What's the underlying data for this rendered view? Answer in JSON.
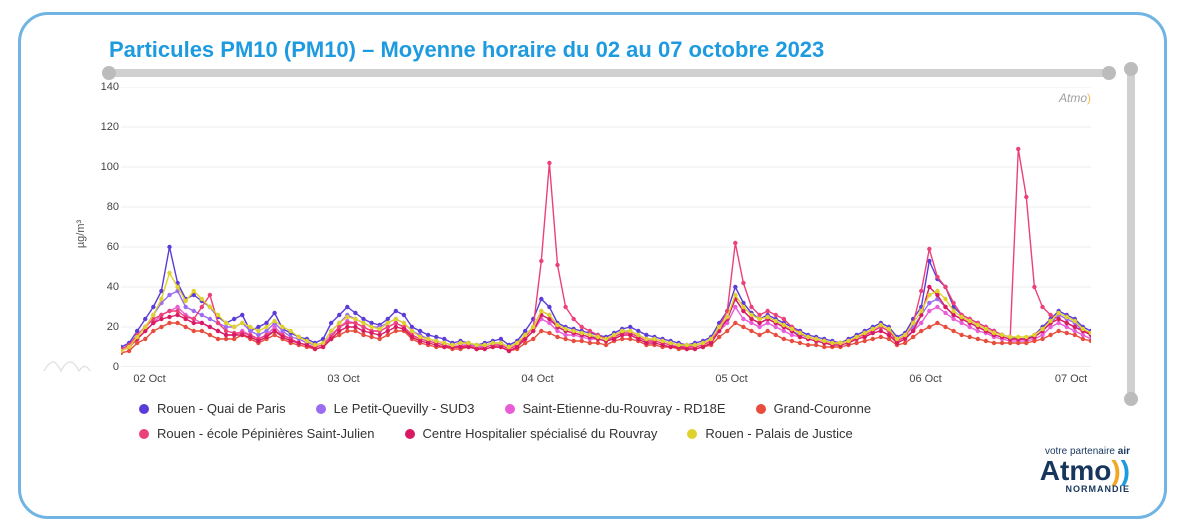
{
  "title": "Particules PM10 (PM10) – Moyenne horaire du 02 au 07 octobre 2023",
  "yaxis_label": "µg/m³",
  "chart": {
    "type": "line",
    "background_color": "#ffffff",
    "grid_color": "#e6e6e6",
    "ylim": [
      0,
      140
    ],
    "ytick_step": 20,
    "yticks": [
      0,
      20,
      40,
      60,
      80,
      100,
      120,
      140
    ],
    "xlim_hours": [
      0,
      120
    ],
    "xtick_hours": [
      4,
      28,
      52,
      76,
      100,
      118
    ],
    "xtick_labels": [
      "02 Oct",
      "03 Oct",
      "04 Oct",
      "05 Oct",
      "06 Oct",
      "07 Oct"
    ],
    "marker_radius": 2.2,
    "line_width": 1.4,
    "series": [
      {
        "name": "Rouen - Quai de Paris",
        "color": "#5b3bd9",
        "values": [
          10,
          12,
          18,
          24,
          30,
          38,
          60,
          42,
          34,
          36,
          33,
          30,
          25,
          22,
          24,
          26,
          18,
          20,
          22,
          27,
          19,
          17,
          15,
          14,
          12,
          14,
          22,
          26,
          30,
          27,
          24,
          22,
          21,
          24,
          28,
          26,
          20,
          18,
          16,
          15,
          14,
          12,
          13,
          12,
          11,
          12,
          13,
          14,
          11,
          13,
          18,
          24,
          34,
          30,
          22,
          20,
          19,
          18,
          17,
          16,
          15,
          17,
          19,
          20,
          18,
          16,
          15,
          14,
          13,
          12,
          11,
          12,
          13,
          15,
          22,
          28,
          40,
          32,
          27,
          24,
          26,
          24,
          22,
          20,
          18,
          16,
          15,
          14,
          13,
          12,
          14,
          16,
          18,
          20,
          22,
          20,
          15,
          17,
          24,
          30,
          53,
          44,
          40,
          30,
          26,
          24,
          22,
          20,
          18,
          16,
          15,
          14,
          14,
          16,
          20,
          24,
          28,
          26,
          24,
          20,
          18
        ]
      },
      {
        "name": "Le Petit-Quevilly - SUD3",
        "color": "#9b6bf0",
        "values": [
          9,
          11,
          16,
          20,
          26,
          32,
          36,
          38,
          30,
          28,
          26,
          24,
          22,
          20,
          20,
          22,
          18,
          16,
          18,
          22,
          18,
          15,
          14,
          12,
          11,
          12,
          18,
          22,
          26,
          24,
          22,
          20,
          20,
          22,
          24,
          22,
          18,
          16,
          14,
          13,
          12,
          11,
          12,
          12,
          10,
          11,
          12,
          12,
          10,
          12,
          16,
          20,
          28,
          26,
          20,
          18,
          17,
          16,
          15,
          15,
          14,
          16,
          18,
          18,
          16,
          14,
          14,
          13,
          12,
          11,
          10,
          11,
          12,
          14,
          20,
          24,
          34,
          28,
          24,
          22,
          24,
          22,
          20,
          18,
          16,
          15,
          14,
          13,
          12,
          12,
          13,
          15,
          16,
          18,
          20,
          18,
          14,
          16,
          20,
          26,
          32,
          34,
          30,
          26,
          24,
          22,
          20,
          18,
          16,
          15,
          14,
          14,
          14,
          15,
          18,
          22,
          26,
          24,
          22,
          18,
          16
        ]
      },
      {
        "name": "Saint-Etienne-du-Rouvray - RD18E",
        "color": "#e85dd6",
        "values": [
          8,
          10,
          14,
          18,
          22,
          26,
          28,
          30,
          26,
          24,
          22,
          20,
          18,
          16,
          16,
          18,
          16,
          14,
          16,
          20,
          16,
          14,
          12,
          11,
          10,
          11,
          16,
          20,
          23,
          22,
          20,
          18,
          18,
          20,
          22,
          20,
          16,
          14,
          13,
          12,
          11,
          10,
          11,
          11,
          10,
          10,
          11,
          11,
          9,
          11,
          14,
          18,
          24,
          22,
          18,
          16,
          16,
          15,
          14,
          14,
          13,
          15,
          17,
          17,
          15,
          13,
          13,
          12,
          11,
          10,
          10,
          10,
          11,
          13,
          18,
          22,
          30,
          24,
          22,
          20,
          22,
          20,
          18,
          16,
          15,
          14,
          13,
          12,
          12,
          12,
          13,
          14,
          15,
          17,
          18,
          16,
          13,
          15,
          18,
          22,
          28,
          30,
          27,
          24,
          22,
          20,
          18,
          17,
          15,
          14,
          13,
          13,
          13,
          14,
          16,
          20,
          22,
          20,
          18,
          16,
          14
        ]
      },
      {
        "name": "Grand-Couronne",
        "color": "#e74c3c",
        "values": [
          7,
          8,
          12,
          14,
          18,
          20,
          22,
          22,
          20,
          18,
          18,
          16,
          14,
          14,
          14,
          16,
          14,
          12,
          14,
          16,
          14,
          12,
          11,
          10,
          9,
          10,
          14,
          16,
          18,
          18,
          16,
          15,
          14,
          16,
          18,
          18,
          14,
          12,
          11,
          10,
          10,
          9,
          9,
          10,
          9,
          9,
          10,
          10,
          8,
          9,
          12,
          14,
          18,
          17,
          15,
          14,
          13,
          13,
          12,
          12,
          11,
          13,
          14,
          14,
          13,
          11,
          11,
          10,
          10,
          9,
          9,
          9,
          10,
          11,
          15,
          18,
          22,
          20,
          18,
          16,
          18,
          16,
          14,
          13,
          12,
          11,
          11,
          10,
          10,
          10,
          11,
          12,
          13,
          14,
          15,
          14,
          11,
          12,
          15,
          18,
          20,
          22,
          20,
          18,
          16,
          15,
          14,
          13,
          12,
          12,
          12,
          12,
          12,
          13,
          14,
          16,
          18,
          17,
          16,
          14,
          13
        ]
      },
      {
        "name": "Rouen - école Pépinières Saint-Julien",
        "color": "#ec407a",
        "values": [
          9,
          11,
          16,
          20,
          24,
          26,
          28,
          28,
          25,
          24,
          30,
          36,
          22,
          18,
          17,
          17,
          16,
          14,
          16,
          18,
          16,
          14,
          12,
          11,
          10,
          11,
          15,
          20,
          22,
          22,
          20,
          18,
          18,
          20,
          22,
          20,
          16,
          14,
          13,
          12,
          11,
          10,
          10,
          11,
          9,
          10,
          11,
          11,
          9,
          11,
          15,
          20,
          53,
          102,
          51,
          30,
          24,
          20,
          18,
          16,
          14,
          15,
          17,
          17,
          15,
          13,
          13,
          12,
          11,
          10,
          10,
          10,
          11,
          13,
          20,
          28,
          62,
          42,
          30,
          26,
          28,
          26,
          24,
          20,
          17,
          15,
          14,
          13,
          12,
          12,
          13,
          15,
          16,
          18,
          20,
          18,
          13,
          15,
          22,
          38,
          59,
          45,
          40,
          32,
          26,
          24,
          22,
          20,
          18,
          16,
          15,
          109,
          85,
          40,
          30,
          26,
          24,
          22,
          20,
          18,
          17
        ]
      },
      {
        "name": "Centre Hospitalier spécialisé du Rouvray",
        "color": "#d81b60",
        "values": [
          8,
          10,
          14,
          18,
          22,
          24,
          25,
          26,
          24,
          22,
          22,
          20,
          18,
          16,
          16,
          16,
          15,
          13,
          15,
          18,
          15,
          13,
          12,
          11,
          9,
          10,
          14,
          18,
          20,
          20,
          18,
          17,
          16,
          18,
          20,
          19,
          15,
          13,
          12,
          11,
          10,
          10,
          10,
          10,
          9,
          9,
          10,
          10,
          8,
          10,
          14,
          18,
          26,
          24,
          20,
          18,
          17,
          16,
          15,
          14,
          13,
          14,
          16,
          16,
          14,
          12,
          12,
          11,
          10,
          10,
          9,
          9,
          10,
          12,
          18,
          24,
          34,
          28,
          24,
          22,
          24,
          22,
          20,
          18,
          15,
          14,
          13,
          12,
          11,
          11,
          12,
          14,
          15,
          17,
          18,
          16,
          12,
          14,
          18,
          26,
          40,
          36,
          30,
          26,
          24,
          22,
          20,
          18,
          16,
          15,
          14,
          14,
          14,
          15,
          18,
          22,
          24,
          22,
          20,
          18,
          16
        ]
      },
      {
        "name": "Rouen - Palais de Justice",
        "color": "#e0d22c",
        "values": [
          8,
          10,
          15,
          20,
          26,
          34,
          47,
          40,
          33,
          38,
          34,
          30,
          26,
          22,
          20,
          22,
          20,
          18,
          20,
          23,
          20,
          18,
          15,
          13,
          11,
          12,
          18,
          22,
          25,
          24,
          22,
          20,
          19,
          22,
          24,
          22,
          18,
          15,
          14,
          13,
          12,
          11,
          12,
          12,
          11,
          11,
          12,
          12,
          10,
          12,
          16,
          20,
          28,
          26,
          21,
          19,
          18,
          17,
          16,
          15,
          14,
          16,
          18,
          18,
          16,
          14,
          14,
          13,
          12,
          11,
          11,
          11,
          12,
          14,
          20,
          25,
          36,
          30,
          26,
          24,
          25,
          23,
          21,
          19,
          17,
          15,
          14,
          13,
          12,
          12,
          13,
          15,
          17,
          19,
          21,
          19,
          14,
          16,
          22,
          28,
          36,
          38,
          34,
          28,
          25,
          23,
          21,
          19,
          17,
          16,
          15,
          15,
          15,
          16,
          19,
          23,
          27,
          25,
          23,
          19,
          17
        ]
      }
    ]
  },
  "watermark": "Atmo",
  "logo": {
    "brand": "Atmo",
    "sub": "NORMANDIE",
    "tagline_prefix": "votre partenaire",
    "tagline_bold": "air"
  }
}
